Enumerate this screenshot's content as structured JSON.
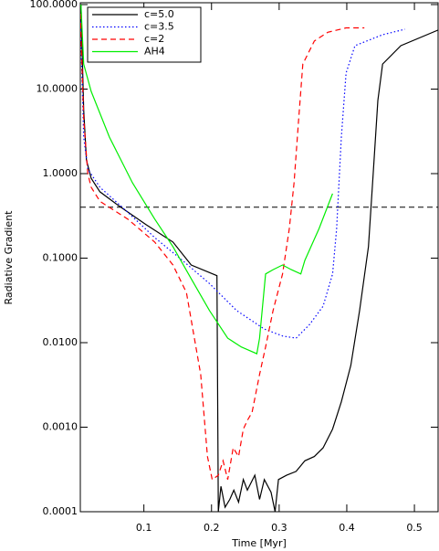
{
  "chart_data": {
    "type": "line",
    "xlabel": "Time [Myr]",
    "ylabel": "Radiative Gradient",
    "log_y": true,
    "xlim": [
      0.006,
      0.535
    ],
    "xticks": [
      0.1,
      0.2,
      0.3,
      0.4,
      0.5
    ],
    "ylim": [
      0.0001,
      100
    ],
    "yticks": [
      {
        "value": 100,
        "label": "100.0000"
      },
      {
        "value": 10,
        "label": "10.0000"
      },
      {
        "value": 1,
        "label": "1.0000"
      },
      {
        "value": 0.1,
        "label": "0.1000"
      },
      {
        "value": 0.01,
        "label": "0.0100"
      },
      {
        "value": 0.001,
        "label": "0.0010"
      },
      {
        "value": 0.0001,
        "label": "0.0001"
      }
    ],
    "hline": 0.4,
    "hline_color": "#000000",
    "legend": "top-left",
    "series": [
      {
        "name": "c=5.0",
        "color": "#000000",
        "dash": "solid",
        "x": [
          0.007,
          0.011,
          0.015,
          0.022,
          0.035,
          0.062,
          0.103,
          0.143,
          0.17,
          0.208,
          0.21,
          0.214,
          0.22,
          0.227,
          0.233,
          0.24,
          0.247,
          0.253,
          0.264,
          0.271,
          0.278,
          0.288,
          0.294,
          0.299,
          0.311,
          0.325,
          0.338,
          0.352,
          0.365,
          0.379,
          0.392,
          0.406,
          0.419,
          0.432,
          0.439,
          0.446,
          0.453,
          0.48,
          0.535
        ],
        "values": [
          100,
          5.7,
          1.45,
          0.88,
          0.61,
          0.42,
          0.25,
          0.155,
          0.083,
          0.062,
          0.0001,
          0.0002,
          0.000113,
          0.00014,
          0.00018,
          0.00013,
          0.00024,
          0.00018,
          0.00027,
          0.00014,
          0.00024,
          0.00017,
          0.0001,
          0.00024,
          0.00027,
          0.0003,
          0.0004,
          0.00045,
          0.00057,
          0.00095,
          0.002,
          0.0054,
          0.024,
          0.137,
          1.0,
          7.3,
          19.8,
          32.6,
          49.9
        ]
      },
      {
        "name": "c=3.5",
        "color": "#0000ff",
        "dash": "dotted",
        "x": [
          0.006,
          0.011,
          0.017,
          0.035,
          0.076,
          0.116,
          0.157,
          0.197,
          0.237,
          0.278,
          0.305,
          0.325,
          0.345,
          0.365,
          0.379,
          0.385,
          0.392,
          0.399,
          0.412,
          0.453,
          0.486
        ],
        "values": [
          69,
          2.7,
          1.13,
          0.69,
          0.35,
          0.175,
          0.094,
          0.05,
          0.024,
          0.0145,
          0.012,
          0.0113,
          0.0164,
          0.027,
          0.065,
          0.22,
          2.7,
          15.5,
          32.6,
          44,
          51
        ]
      },
      {
        "name": "c=2",
        "color": "#ff0000",
        "dash": "dashed",
        "x": [
          0.006,
          0.011,
          0.017,
          0.022,
          0.035,
          0.076,
          0.116,
          0.143,
          0.163,
          0.184,
          0.194,
          0.201,
          0.21,
          0.217,
          0.224,
          0.232,
          0.24,
          0.247,
          0.253,
          0.26,
          0.271,
          0.28,
          0.291,
          0.305,
          0.315,
          0.322,
          0.329,
          0.335,
          0.352,
          0.372,
          0.399,
          0.426
        ],
        "values": [
          78,
          4.5,
          1.0,
          0.69,
          0.47,
          0.29,
          0.155,
          0.083,
          0.039,
          0.0042,
          0.00045,
          0.00024,
          0.00027,
          0.0004,
          0.00024,
          0.00057,
          0.00045,
          0.00095,
          0.0012,
          0.0015,
          0.0042,
          0.0089,
          0.024,
          0.065,
          0.224,
          0.78,
          4.5,
          19.8,
          37,
          47,
          53,
          53
        ]
      },
      {
        "name": "AH4",
        "color": "#00ee00",
        "dash": "solid",
        "x": [
          0.007,
          0.011,
          0.022,
          0.049,
          0.083,
          0.116,
          0.143,
          0.17,
          0.197,
          0.224,
          0.244,
          0.267,
          0.271,
          0.28,
          0.291,
          0.305,
          0.318,
          0.332,
          0.338,
          0.359,
          0.379
        ],
        "values": [
          100,
          19.8,
          9.4,
          2.7,
          0.78,
          0.29,
          0.137,
          0.057,
          0.024,
          0.0113,
          0.0089,
          0.0074,
          0.0113,
          0.065,
          0.073,
          0.083,
          0.073,
          0.065,
          0.094,
          0.224,
          0.58
        ]
      }
    ]
  }
}
